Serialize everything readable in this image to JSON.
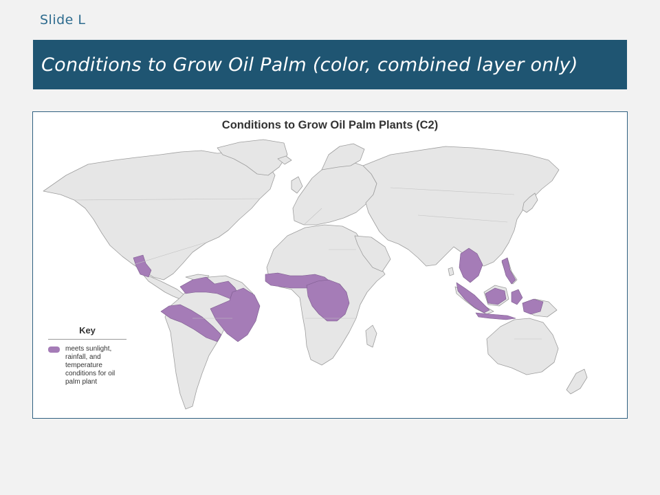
{
  "slide": {
    "label": "Slide L"
  },
  "header": {
    "title": "Conditions to Grow Oil Palm (color, combined layer only)"
  },
  "map": {
    "title": "Conditions to Grow Oil Palm Plants (C2)",
    "key": {
      "title": "Key",
      "items": [
        {
          "label": "meets sunlight, rainfall, and temperature conditions for oil palm plant",
          "color": "#a57cb7"
        }
      ]
    },
    "land_color": "#e6e6e6",
    "border_color": "#9c9c9c",
    "highlight_regions": [
      "Central America",
      "Northern South America",
      "Central and West Africa",
      "Southeast Asia"
    ]
  },
  "colors": {
    "banner": "#1f5572",
    "slide_label": "#2d6b8e",
    "frame_border": "#2e5f7f"
  }
}
